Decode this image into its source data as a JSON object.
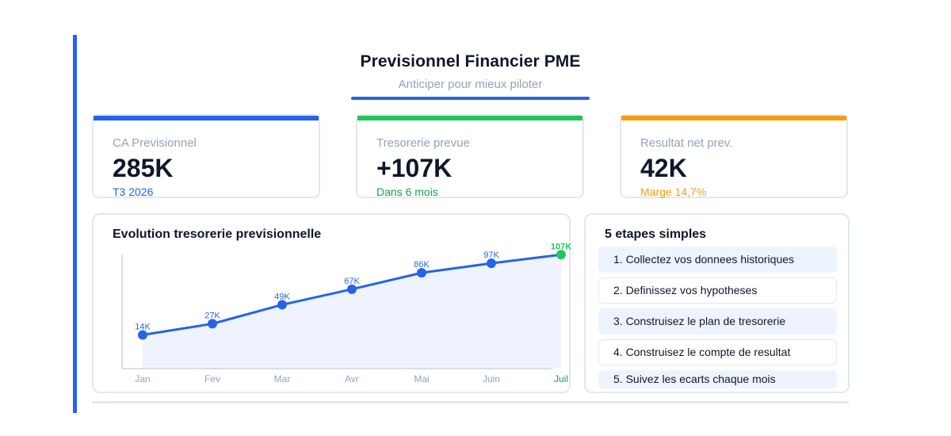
{
  "header": {
    "title": "Previsionnel Financier PME",
    "subtitle": "Anticiper pour mieux piloter"
  },
  "kpis": [
    {
      "label": "CA Previsionnel",
      "value": "285K",
      "sub": "T3 2026",
      "color": "#2563eb",
      "sub_color": "#2563eb"
    },
    {
      "label": "Tresorerie prevue",
      "value": "+107K",
      "sub": "Dans 6 mois",
      "color": "#22c55e",
      "sub_color": "#16a34a"
    },
    {
      "label": "Resultat net prev.",
      "value": "42K",
      "sub": "Marge 14,7%",
      "color": "#f59e0b",
      "sub_color": "#f59e0b"
    }
  ],
  "chart_panel": {
    "title": "Evolution tresorerie previsionnelle"
  },
  "chart_data": {
    "type": "area",
    "title": "Evolution tresorerie previsionnelle",
    "categories": [
      "Jan",
      "Fev",
      "Mar",
      "Avr",
      "Mai",
      "Juin",
      "Juil"
    ],
    "values": [
      14,
      27,
      49,
      67,
      86,
      97,
      107
    ],
    "labels": [
      "14K",
      "27K",
      "49K",
      "67K",
      "86K",
      "97K",
      "107K"
    ],
    "ylim": [
      -25,
      110
    ],
    "grid": false,
    "line_color": "#2563eb",
    "highlight_color": "#22c55e",
    "fill_color": "#eef3fd",
    "highlight_index": 6
  },
  "steps_panel": {
    "title": "5 etapes simples",
    "steps": [
      "1. Collectez vos donnees historiques",
      "2. Definissez vos hypotheses",
      "3. Construisez le plan de tresorerie",
      "4. Construisez le compte de resultat",
      "5. Suivez les ecarts chaque mois"
    ]
  }
}
